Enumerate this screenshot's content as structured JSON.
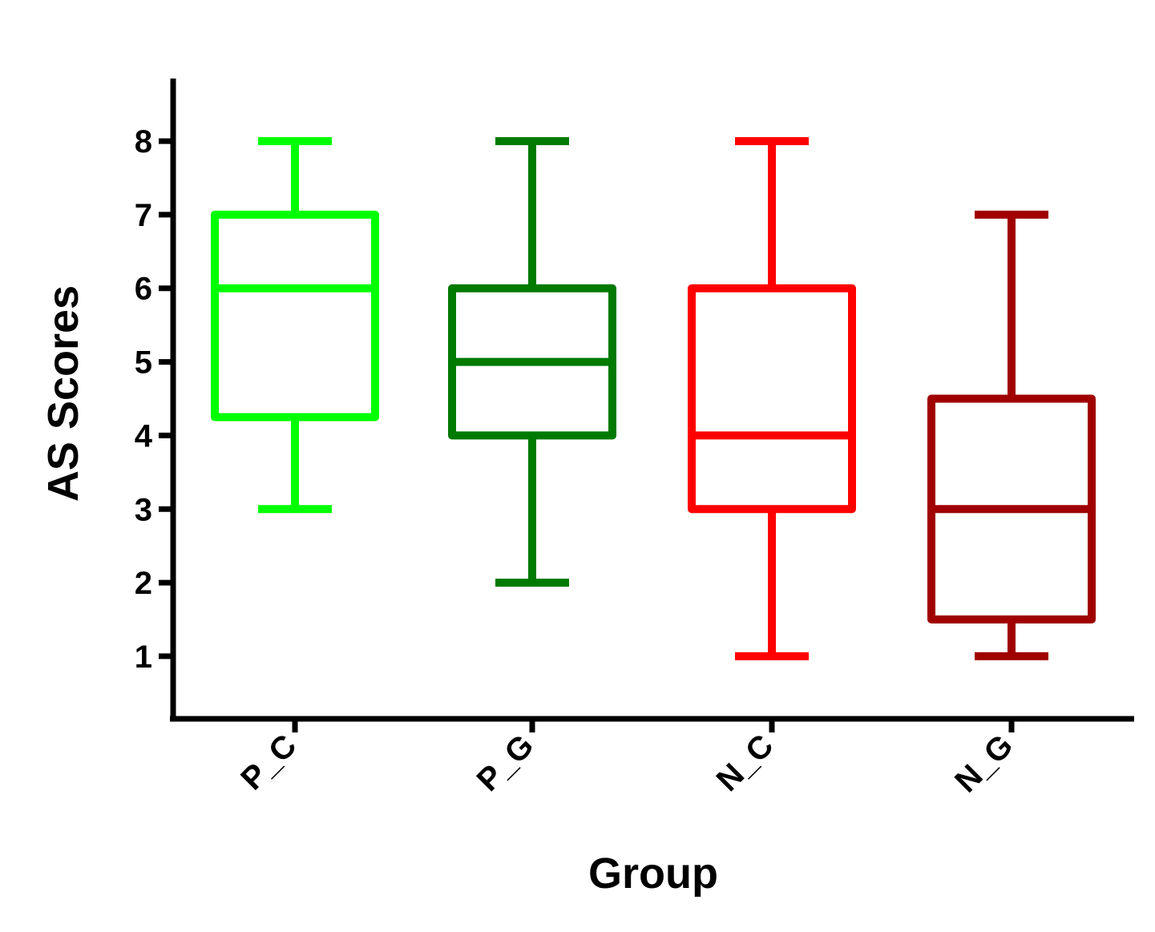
{
  "chart_data": {
    "type": "box",
    "xlabel": "Group",
    "ylabel": "AS Scores",
    "ylim": [
      0.15,
      8.85
    ],
    "yticks": [
      1,
      2,
      3,
      4,
      5,
      6,
      7,
      8
    ],
    "grid": false,
    "legend": "none",
    "categories": [
      "P_C",
      "P_G",
      "N_C",
      "N_G"
    ],
    "boxes": [
      {
        "category": "P_C",
        "min": 3,
        "q1": 4.25,
        "median": 6,
        "q3": 7,
        "max": 8,
        "color": "#00ff00"
      },
      {
        "category": "P_G",
        "min": 2,
        "q1": 4,
        "median": 5,
        "q3": 6,
        "max": 8,
        "color": "#007a00"
      },
      {
        "category": "N_C",
        "min": 1,
        "q1": 3,
        "median": 4,
        "q3": 6,
        "max": 8,
        "color": "#ff0000"
      },
      {
        "category": "N_G",
        "min": 1,
        "q1": 1.5,
        "median": 3,
        "q3": 4.5,
        "max": 7,
        "color": "#a00000"
      }
    ]
  }
}
